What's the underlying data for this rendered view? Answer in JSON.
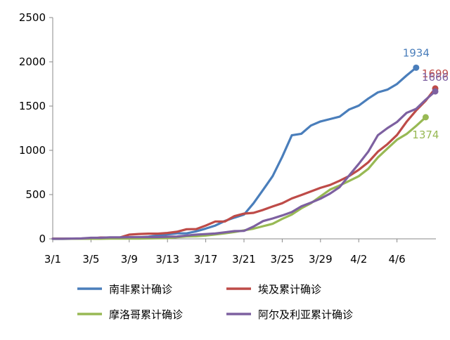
{
  "chart_data": {
    "type": "line",
    "x_tick_labels": [
      "3/1",
      "3/5",
      "3/9",
      "3/13",
      "3/17",
      "3/21",
      "3/25",
      "3/29",
      "4/2",
      "4/6"
    ],
    "ylim": [
      0,
      2500
    ],
    "y_ticks": [
      0,
      500,
      1000,
      1500,
      2000,
      2500
    ],
    "grid": false,
    "legend_placement": "bottom",
    "series": [
      {
        "name": "南非累计确诊",
        "color": "#4a7ebb",
        "end_label": "1934",
        "values": [
          0,
          0,
          1,
          1,
          1,
          3,
          7,
          13,
          16,
          17,
          24,
          38,
          51,
          62,
          62,
          85,
          116,
          150,
          202,
          240,
          274,
          402,
          554,
          709,
          927,
          1170,
          1187,
          1280,
          1326,
          1353,
          1380,
          1462,
          1505,
          1585,
          1655,
          1686,
          1749,
          1845,
          1934
        ]
      },
      {
        "name": "埃及累计确诊",
        "color": "#be4b48",
        "end_label": "1699",
        "values": [
          2,
          2,
          2,
          2,
          3,
          15,
          15,
          15,
          48,
          55,
          59,
          59,
          67,
          80,
          109,
          110,
          150,
          196,
          196,
          256,
          285,
          294,
          327,
          366,
          402,
          456,
          495,
          536,
          576,
          609,
          656,
          710,
          779,
          865,
          985,
          1070,
          1173,
          1322,
          1450,
          1560,
          1699
        ]
      },
      {
        "name": "摩洛哥累计确诊",
        "color": "#98b954",
        "end_label": "1374",
        "values": [
          0,
          0,
          1,
          1,
          1,
          1,
          2,
          2,
          2,
          3,
          5,
          7,
          8,
          18,
          28,
          29,
          37,
          49,
          63,
          77,
          96,
          115,
          143,
          170,
          225,
          275,
          345,
          402,
          479,
          556,
          602,
          654,
          708,
          791,
          919,
          1021,
          1120,
          1184,
          1275,
          1374
        ]
      },
      {
        "name": "阿尔及利亚累计确诊",
        "color": "#7d60a0",
        "end_label": "1666",
        "values": [
          1,
          1,
          3,
          5,
          12,
          12,
          17,
          17,
          19,
          20,
          20,
          20,
          24,
          26,
          37,
          48,
          54,
          60,
          74,
          87,
          90,
          139,
          201,
          230,
          264,
          302,
          367,
          409,
          454,
          511,
          584,
          716,
          847,
          986,
          1171,
          1251,
          1320,
          1423,
          1468,
          1572,
          1666
        ]
      }
    ]
  }
}
